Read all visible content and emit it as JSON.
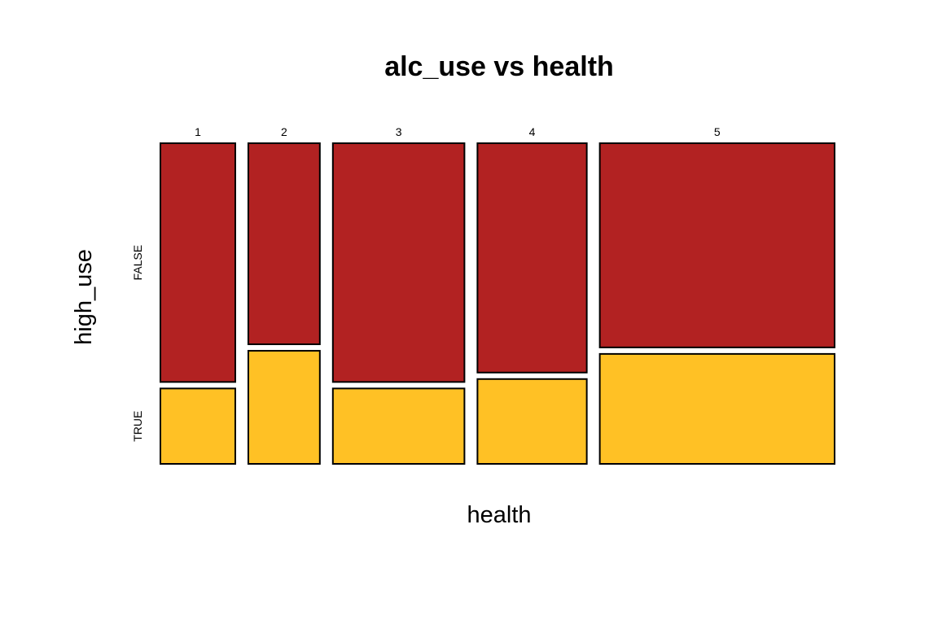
{
  "chart_data": {
    "type": "mosaic",
    "title": "alc_use vs health",
    "xlabel": "health",
    "ylabel": "high_use",
    "x_categories": [
      "1",
      "2",
      "3",
      "4",
      "5"
    ],
    "y_categories": [
      "FALSE",
      "TRUE"
    ],
    "column_shares": [
      0.111,
      0.106,
      0.195,
      0.162,
      0.348
    ],
    "row_shares_by_column": [
      {
        "health": "1",
        "FALSE": 0.76,
        "TRUE": 0.24
      },
      {
        "health": "2",
        "FALSE": 0.64,
        "TRUE": 0.36
      },
      {
        "health": "3",
        "FALSE": 0.76,
        "TRUE": 0.24
      },
      {
        "health": "4",
        "FALSE": 0.73,
        "TRUE": 0.27
      },
      {
        "health": "5",
        "FALSE": 0.65,
        "TRUE": 0.35
      }
    ],
    "colors": {
      "FALSE": "#B22222",
      "TRUE": "#FFC125",
      "stroke": "#000000"
    },
    "grid": false,
    "legend": "none"
  }
}
